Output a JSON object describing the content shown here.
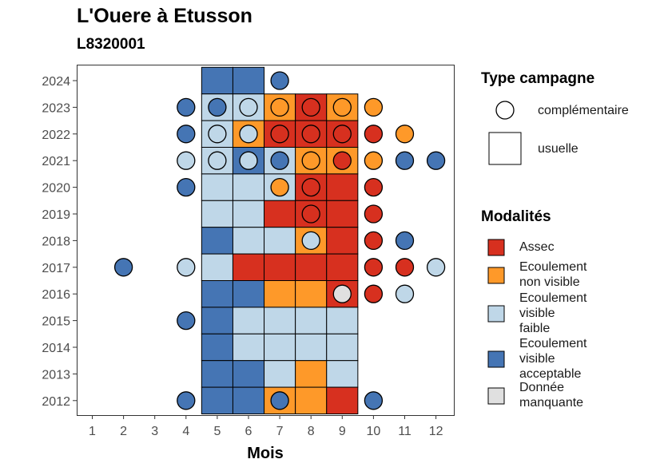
{
  "chart_data": {
    "type": "heatmap",
    "title": "L'Ouere à Etusson",
    "subtitle": "L8320001",
    "xlabel": "Mois",
    "ylabel": "",
    "x_ticks": [
      1,
      2,
      3,
      4,
      5,
      6,
      7,
      8,
      9,
      10,
      11,
      12
    ],
    "y_ticks": [
      2012,
      2013,
      2014,
      2015,
      2016,
      2017,
      2018,
      2019,
      2020,
      2021,
      2022,
      2023,
      2024
    ],
    "colors": {
      "Assec": "#d7301f",
      "Ecoulement non visible": "#fe9929",
      "Ecoulement visible faible": "#bfd7e8",
      "Ecoulement visible acceptable": "#4575b4",
      "Donnée manquante": "#e0e0e0"
    },
    "codes": {
      "A": "Assec",
      "N": "Ecoulement non visible",
      "F": "Ecoulement visible faible",
      "V": "Ecoulement visible acceptable",
      "M": "Donnée manquante"
    },
    "usuelle": [
      {
        "year": 2024,
        "values": {
          "5": "V",
          "6": "V"
        }
      },
      {
        "year": 2023,
        "values": {
          "5": "F",
          "6": "F",
          "7": "N",
          "8": "A",
          "9": "N"
        }
      },
      {
        "year": 2022,
        "values": {
          "5": "F",
          "6": "N",
          "7": "A",
          "8": "A",
          "9": "A"
        }
      },
      {
        "year": 2021,
        "values": {
          "5": "F",
          "6": "V",
          "7": "F",
          "8": "N",
          "9": "N"
        }
      },
      {
        "year": 2020,
        "values": {
          "5": "F",
          "6": "F",
          "7": "F",
          "8": "A",
          "9": "A"
        }
      },
      {
        "year": 2019,
        "values": {
          "5": "F",
          "6": "F",
          "7": "A",
          "8": "A",
          "9": "A"
        }
      },
      {
        "year": 2018,
        "values": {
          "5": "V",
          "6": "F",
          "7": "F",
          "8": "N",
          "9": "A"
        }
      },
      {
        "year": 2017,
        "values": {
          "5": "F",
          "6": "A",
          "7": "A",
          "8": "A",
          "9": "A"
        }
      },
      {
        "year": 2016,
        "values": {
          "5": "V",
          "6": "V",
          "7": "N",
          "8": "N",
          "9": "A"
        }
      },
      {
        "year": 2015,
        "values": {
          "5": "V",
          "6": "F",
          "7": "F",
          "8": "F",
          "9": "F"
        }
      },
      {
        "year": 2014,
        "values": {
          "5": "V",
          "6": "F",
          "7": "F",
          "8": "F",
          "9": "F"
        }
      },
      {
        "year": 2013,
        "values": {
          "5": "V",
          "6": "V",
          "7": "F",
          "8": "N",
          "9": "F"
        }
      },
      {
        "year": 2012,
        "values": {
          "5": "V",
          "6": "V",
          "7": "N",
          "8": "N",
          "9": "A"
        }
      }
    ],
    "complementaire": [
      {
        "year": 2024,
        "values": {
          "7": "V"
        }
      },
      {
        "year": 2023,
        "values": {
          "4": "V",
          "5": "V",
          "6": "F",
          "7": "N",
          "8": "A",
          "9": "N",
          "10": "N"
        }
      },
      {
        "year": 2022,
        "values": {
          "4": "V",
          "5": "F",
          "6": "F",
          "7": "A",
          "8": "A",
          "9": "A",
          "10": "A",
          "11": "N"
        }
      },
      {
        "year": 2021,
        "values": {
          "4": "F",
          "5": "F",
          "6": "F",
          "7": "V",
          "8": "N",
          "9": "A",
          "10": "N",
          "11": "V",
          "12": "V"
        }
      },
      {
        "year": 2020,
        "values": {
          "4": "V",
          "7": "N",
          "8": "A",
          "10": "A"
        }
      },
      {
        "year": 2019,
        "values": {
          "8": "A",
          "10": "A"
        }
      },
      {
        "year": 2018,
        "values": {
          "8": "F",
          "10": "A",
          "11": "V"
        }
      },
      {
        "year": 2017,
        "values": {
          "2": "V",
          "4": "F",
          "10": "A",
          "11": "A",
          "12": "F"
        }
      },
      {
        "year": 2016,
        "values": {
          "9": "M",
          "10": "A",
          "11": "F"
        }
      },
      {
        "year": 2015,
        "values": {
          "4": "V"
        }
      },
      {
        "year": 2012,
        "values": {
          "4": "V",
          "7": "V",
          "10": "V"
        }
      }
    ],
    "legend_type": {
      "title": "Type campagne",
      "items": [
        "complémentaire",
        "usuelle"
      ]
    },
    "legend_modalites": {
      "title": "Modalités",
      "items": [
        {
          "code": "A",
          "lines": [
            "Assec"
          ]
        },
        {
          "code": "N",
          "lines": [
            "Ecoulement",
            "non visible"
          ]
        },
        {
          "code": "F",
          "lines": [
            "Ecoulement",
            "visible",
            "faible"
          ]
        },
        {
          "code": "V",
          "lines": [
            "Ecoulement",
            "visible",
            "acceptable"
          ]
        },
        {
          "code": "M",
          "lines": [
            "Donnée",
            "manquante"
          ]
        }
      ]
    },
    "grid": false,
    "legend_position": "right"
  }
}
